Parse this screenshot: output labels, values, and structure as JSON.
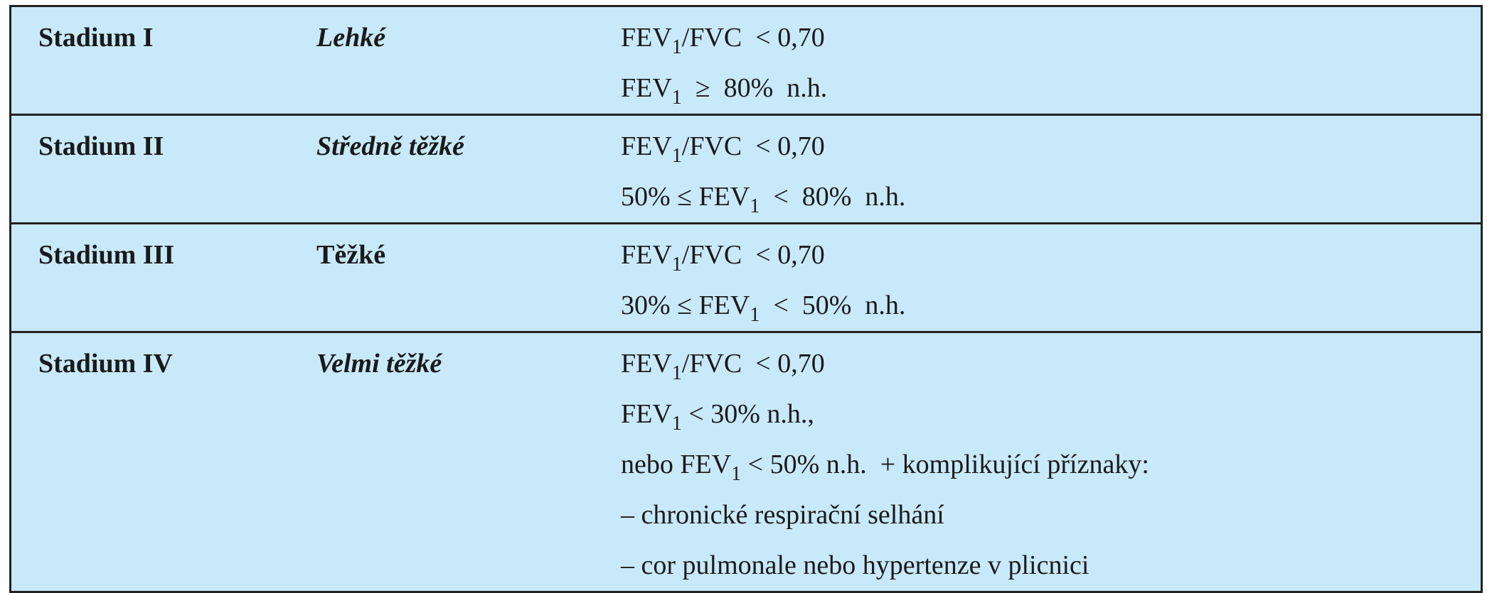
{
  "table": {
    "rows": [
      {
        "stage": "Stadium I",
        "severity": "Lehké",
        "criteria": [
          [
            "FEV",
            "1",
            "/FVC  < 0,70"
          ],
          [
            "FEV",
            "1",
            "  ≥  80%  n.h."
          ]
        ]
      },
      {
        "stage": "Stadium II",
        "severity": "Středně těžké",
        "criteria": [
          [
            "FEV",
            "1",
            "/FVC  < 0,70"
          ],
          [
            "50% ≤ FEV",
            "1",
            "  <  80%  n.h."
          ]
        ]
      },
      {
        "stage": "Stadium III",
        "severity": "Těžké",
        "criteria": [
          [
            "FEV",
            "1",
            "/FVC  < 0,70"
          ],
          [
            "30% ≤ FEV",
            "1",
            "  <  50%  n.h."
          ]
        ]
      },
      {
        "stage": "Stadium IV",
        "severity": "Velmi těžké",
        "criteria": [
          [
            "FEV",
            "1",
            "/FVC  < 0,70"
          ],
          [
            "FEV",
            "1",
            " < 30% n.h.,"
          ],
          [
            "nebo FEV",
            "1",
            " < 50% n.h.  + komplikující příznaky:"
          ],
          [
            "– chronické respirační selhání"
          ],
          [
            "– cor pulmonale nebo hypertenze v plicnici"
          ]
        ]
      }
    ]
  }
}
